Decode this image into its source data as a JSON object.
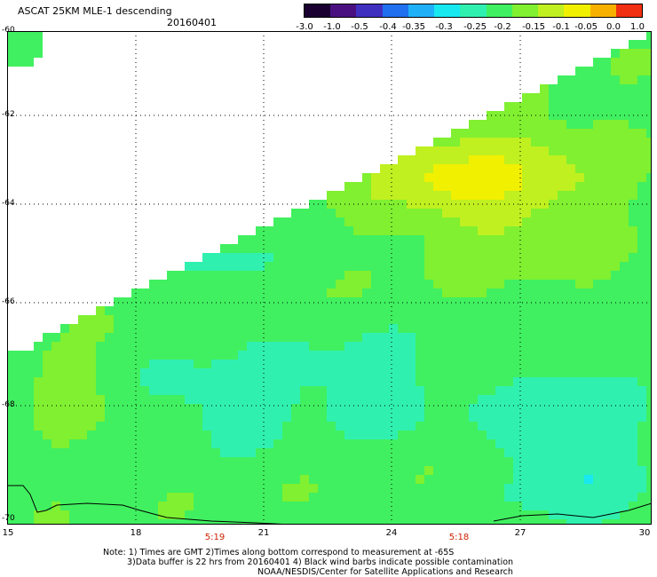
{
  "title": "ASCAT 25KM MLE-1 descending",
  "date": "20160401",
  "colorbar": {
    "labels": [
      "-3.0",
      "-1.0",
      "-0.5",
      "-0.4",
      "-0.35",
      "-0.3",
      "-0.25",
      "-0.2",
      "-0.15",
      "-0.1",
      "-0.05",
      "0.0",
      "1.0"
    ],
    "colors": [
      "#1a0030",
      "#4a1080",
      "#4030c0",
      "#2070f0",
      "#20b0f8",
      "#18e8f0",
      "#30f0b0",
      "#40f060",
      "#80f030",
      "#c0f020",
      "#f0f000",
      "#f8b000",
      "#f03010"
    ]
  },
  "axes": {
    "y_labels": [
      "-60",
      "-62",
      "-64",
      "-66",
      "-68",
      "-70"
    ],
    "x_labels": [
      "15",
      "18",
      "21",
      "24",
      "27",
      "30"
    ],
    "time_labels": [
      "5:19",
      "5:18"
    ]
  },
  "notes": [
    "Note: 1) Times are GMT 2)Times along bottom correspond to measurement at -65S",
    "3)Data buffer is 22 hrs from 20160401 4) Black wind barbs indicate possible contamination",
    "NOAA/NESDIS/Center for Satellite Applications and Research"
  ]
}
